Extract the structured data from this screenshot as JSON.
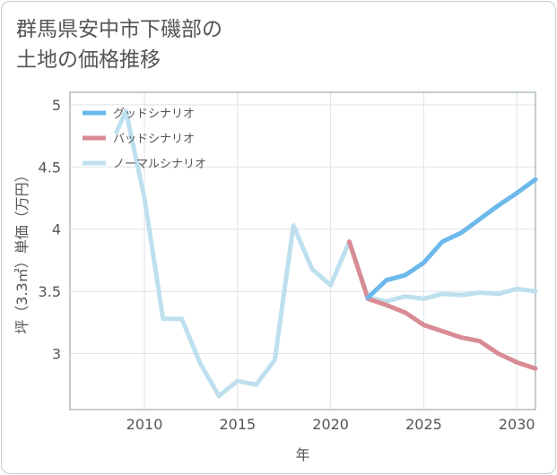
{
  "title_lines": [
    "群馬県安中市下磯部の",
    "土地の価格推移"
  ],
  "chart_data": {
    "type": "line",
    "xlabel": "年",
    "ylabel": "坪（3.3㎡）単価（万円）",
    "xlim": [
      2006,
      2031
    ],
    "ylim": [
      2.55,
      5.1
    ],
    "x_ticks": [
      2010,
      2015,
      2020,
      2025,
      2030
    ],
    "y_ticks": [
      3,
      3.5,
      4,
      4.5,
      5
    ],
    "grid": true,
    "legend_position": "top-left",
    "series": [
      {
        "name": "グッドシナリオ",
        "color": "#6bb8ec",
        "x": [
          2022,
          2023,
          2024,
          2025,
          2026,
          2027,
          2028,
          2029,
          2030,
          2031
        ],
        "y": [
          3.45,
          3.59,
          3.63,
          3.73,
          3.9,
          3.97,
          4.08,
          4.19,
          4.29,
          4.4
        ]
      },
      {
        "name": "バッドシナリオ",
        "color": "#d98b93",
        "x": [
          2021,
          2022,
          2023,
          2024,
          2025,
          2026,
          2027,
          2028,
          2029,
          2030,
          2031
        ],
        "y": [
          3.9,
          3.44,
          3.39,
          3.33,
          3.23,
          3.18,
          3.13,
          3.1,
          3.0,
          2.93,
          2.88
        ]
      },
      {
        "name": "ノーマルシナリオ",
        "color": "#bee0ee",
        "x": [
          2008.5,
          2009,
          2010,
          2011,
          2012,
          2013,
          2014,
          2015,
          2016,
          2017,
          2018,
          2019,
          2020,
          2021,
          2022,
          2023,
          2024,
          2025,
          2026,
          2027,
          2028,
          2029,
          2030,
          2031
        ],
        "y": [
          4.78,
          4.95,
          4.25,
          3.28,
          3.28,
          2.92,
          2.66,
          2.78,
          2.75,
          2.95,
          4.03,
          3.68,
          3.55,
          3.9,
          3.45,
          3.42,
          3.46,
          3.44,
          3.48,
          3.47,
          3.49,
          3.48,
          3.52,
          3.5
        ]
      }
    ]
  }
}
